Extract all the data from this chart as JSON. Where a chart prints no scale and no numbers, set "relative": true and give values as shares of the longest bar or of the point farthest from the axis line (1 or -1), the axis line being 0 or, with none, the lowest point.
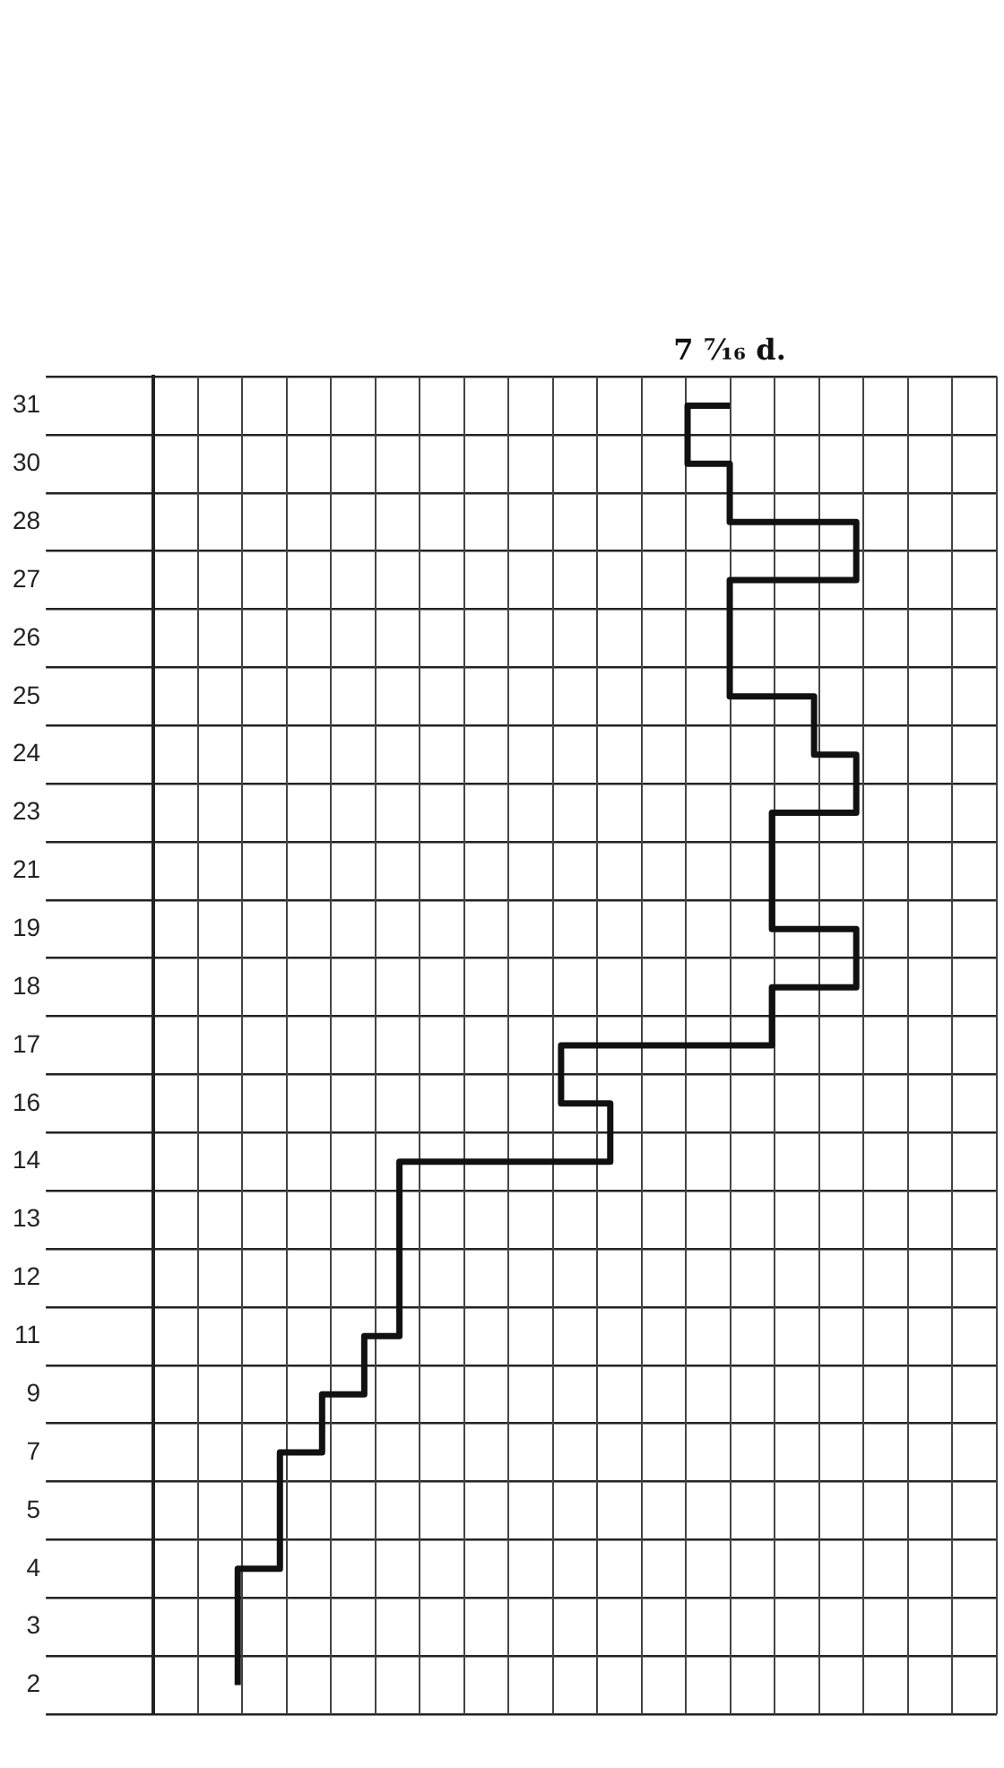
{
  "chart_data": {
    "type": "step",
    "relative": true,
    "grid": true,
    "marker": "none",
    "color": "#111111",
    "orientation": "horizontal",
    "categories": [
      "31",
      "30",
      "28",
      "27",
      "26",
      "25",
      "24",
      "23",
      "21",
      "19",
      "18",
      "17",
      "16",
      "14",
      "13",
      "12",
      "11",
      "9",
      "7",
      "5",
      "4",
      "3",
      "2"
    ],
    "values": [
      0.82,
      0.76,
      0.82,
      1,
      0.82,
      0.82,
      0.94,
      1,
      0.88,
      0.88,
      1,
      0.88,
      0.58,
      0.65,
      0.35,
      0.35,
      0.35,
      0.3,
      0.24,
      0.18,
      0.18,
      0.12,
      0.12
    ],
    "annotations": [
      {
        "text": "7 ⁷⁄₁₆ d.",
        "x": 0.82,
        "y": "31"
      }
    ]
  }
}
